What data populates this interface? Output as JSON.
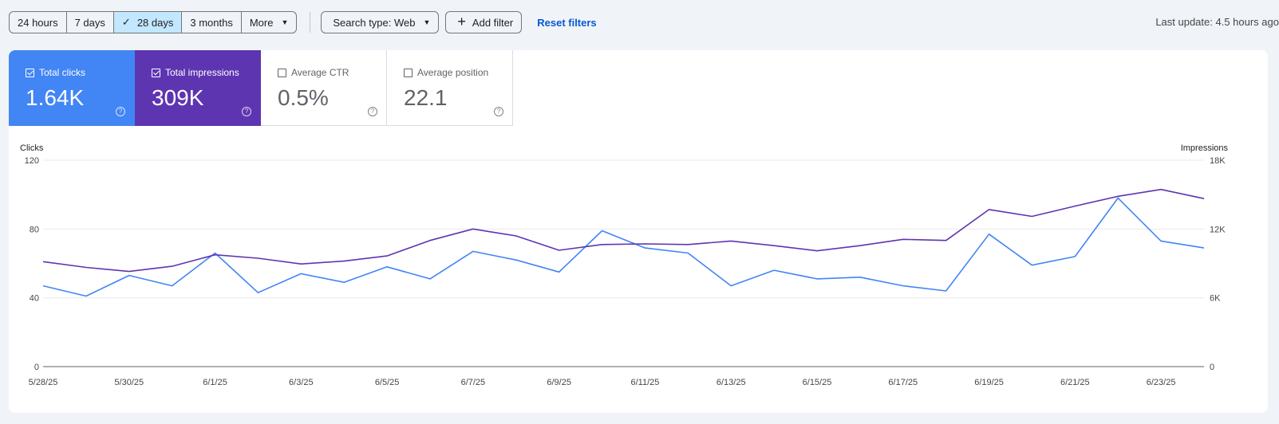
{
  "toolbar": {
    "ranges": [
      {
        "label": "24 hours"
      },
      {
        "label": "7 days"
      },
      {
        "label": "28 days"
      },
      {
        "label": "3 months"
      },
      {
        "label": "More"
      }
    ],
    "search_type": "Search type: Web",
    "add_filter": "Add filter",
    "reset_filters": "Reset filters",
    "last_update": "Last update: 4.5 hours ago"
  },
  "metrics": {
    "clicks": {
      "label": "Total clicks",
      "value": "1.64K",
      "checked": true,
      "color": "#4285f4"
    },
    "impressions": {
      "label": "Total impressions",
      "value": "309K",
      "checked": true,
      "color": "#5e35b1"
    },
    "ctr": {
      "label": "Average CTR",
      "value": "0.5%",
      "checked": false
    },
    "position": {
      "label": "Average position",
      "value": "22.1",
      "checked": false
    }
  },
  "chart_data": {
    "type": "line",
    "left_axis_label": "Clicks",
    "right_axis_label": "Impressions",
    "left_ticks": [
      "0",
      "40",
      "80",
      "120"
    ],
    "right_ticks": [
      "0",
      "6K",
      "12K",
      "18K"
    ],
    "ylim_left": [
      0,
      120
    ],
    "ylim_right": [
      0,
      18000
    ],
    "x_labels": [
      "5/28/25",
      "5/30/25",
      "6/1/25",
      "6/3/25",
      "6/5/25",
      "6/7/25",
      "6/9/25",
      "6/11/25",
      "6/13/25",
      "6/15/25",
      "6/17/25",
      "6/19/25",
      "6/21/25",
      "6/23/25"
    ],
    "grid": true,
    "series": [
      {
        "name": "Clicks",
        "axis": "left",
        "color": "#4285f4",
        "values": [
          47,
          41,
          53,
          47,
          66,
          43,
          54,
          49,
          58,
          51,
          67,
          62,
          55,
          79,
          69,
          66,
          47,
          56,
          51,
          52,
          47,
          44,
          77,
          59,
          64,
          98,
          73,
          69
        ]
      },
      {
        "name": "Impressions",
        "axis": "right",
        "color": "#5e35b1",
        "values": [
          9150,
          8650,
          8300,
          8750,
          9750,
          9450,
          8950,
          9200,
          9650,
          11000,
          12000,
          11400,
          10150,
          10650,
          10700,
          10650,
          10950,
          10550,
          10100,
          10550,
          11100,
          11000,
          13700,
          13100,
          14000,
          14850,
          15450,
          14650
        ]
      }
    ]
  }
}
